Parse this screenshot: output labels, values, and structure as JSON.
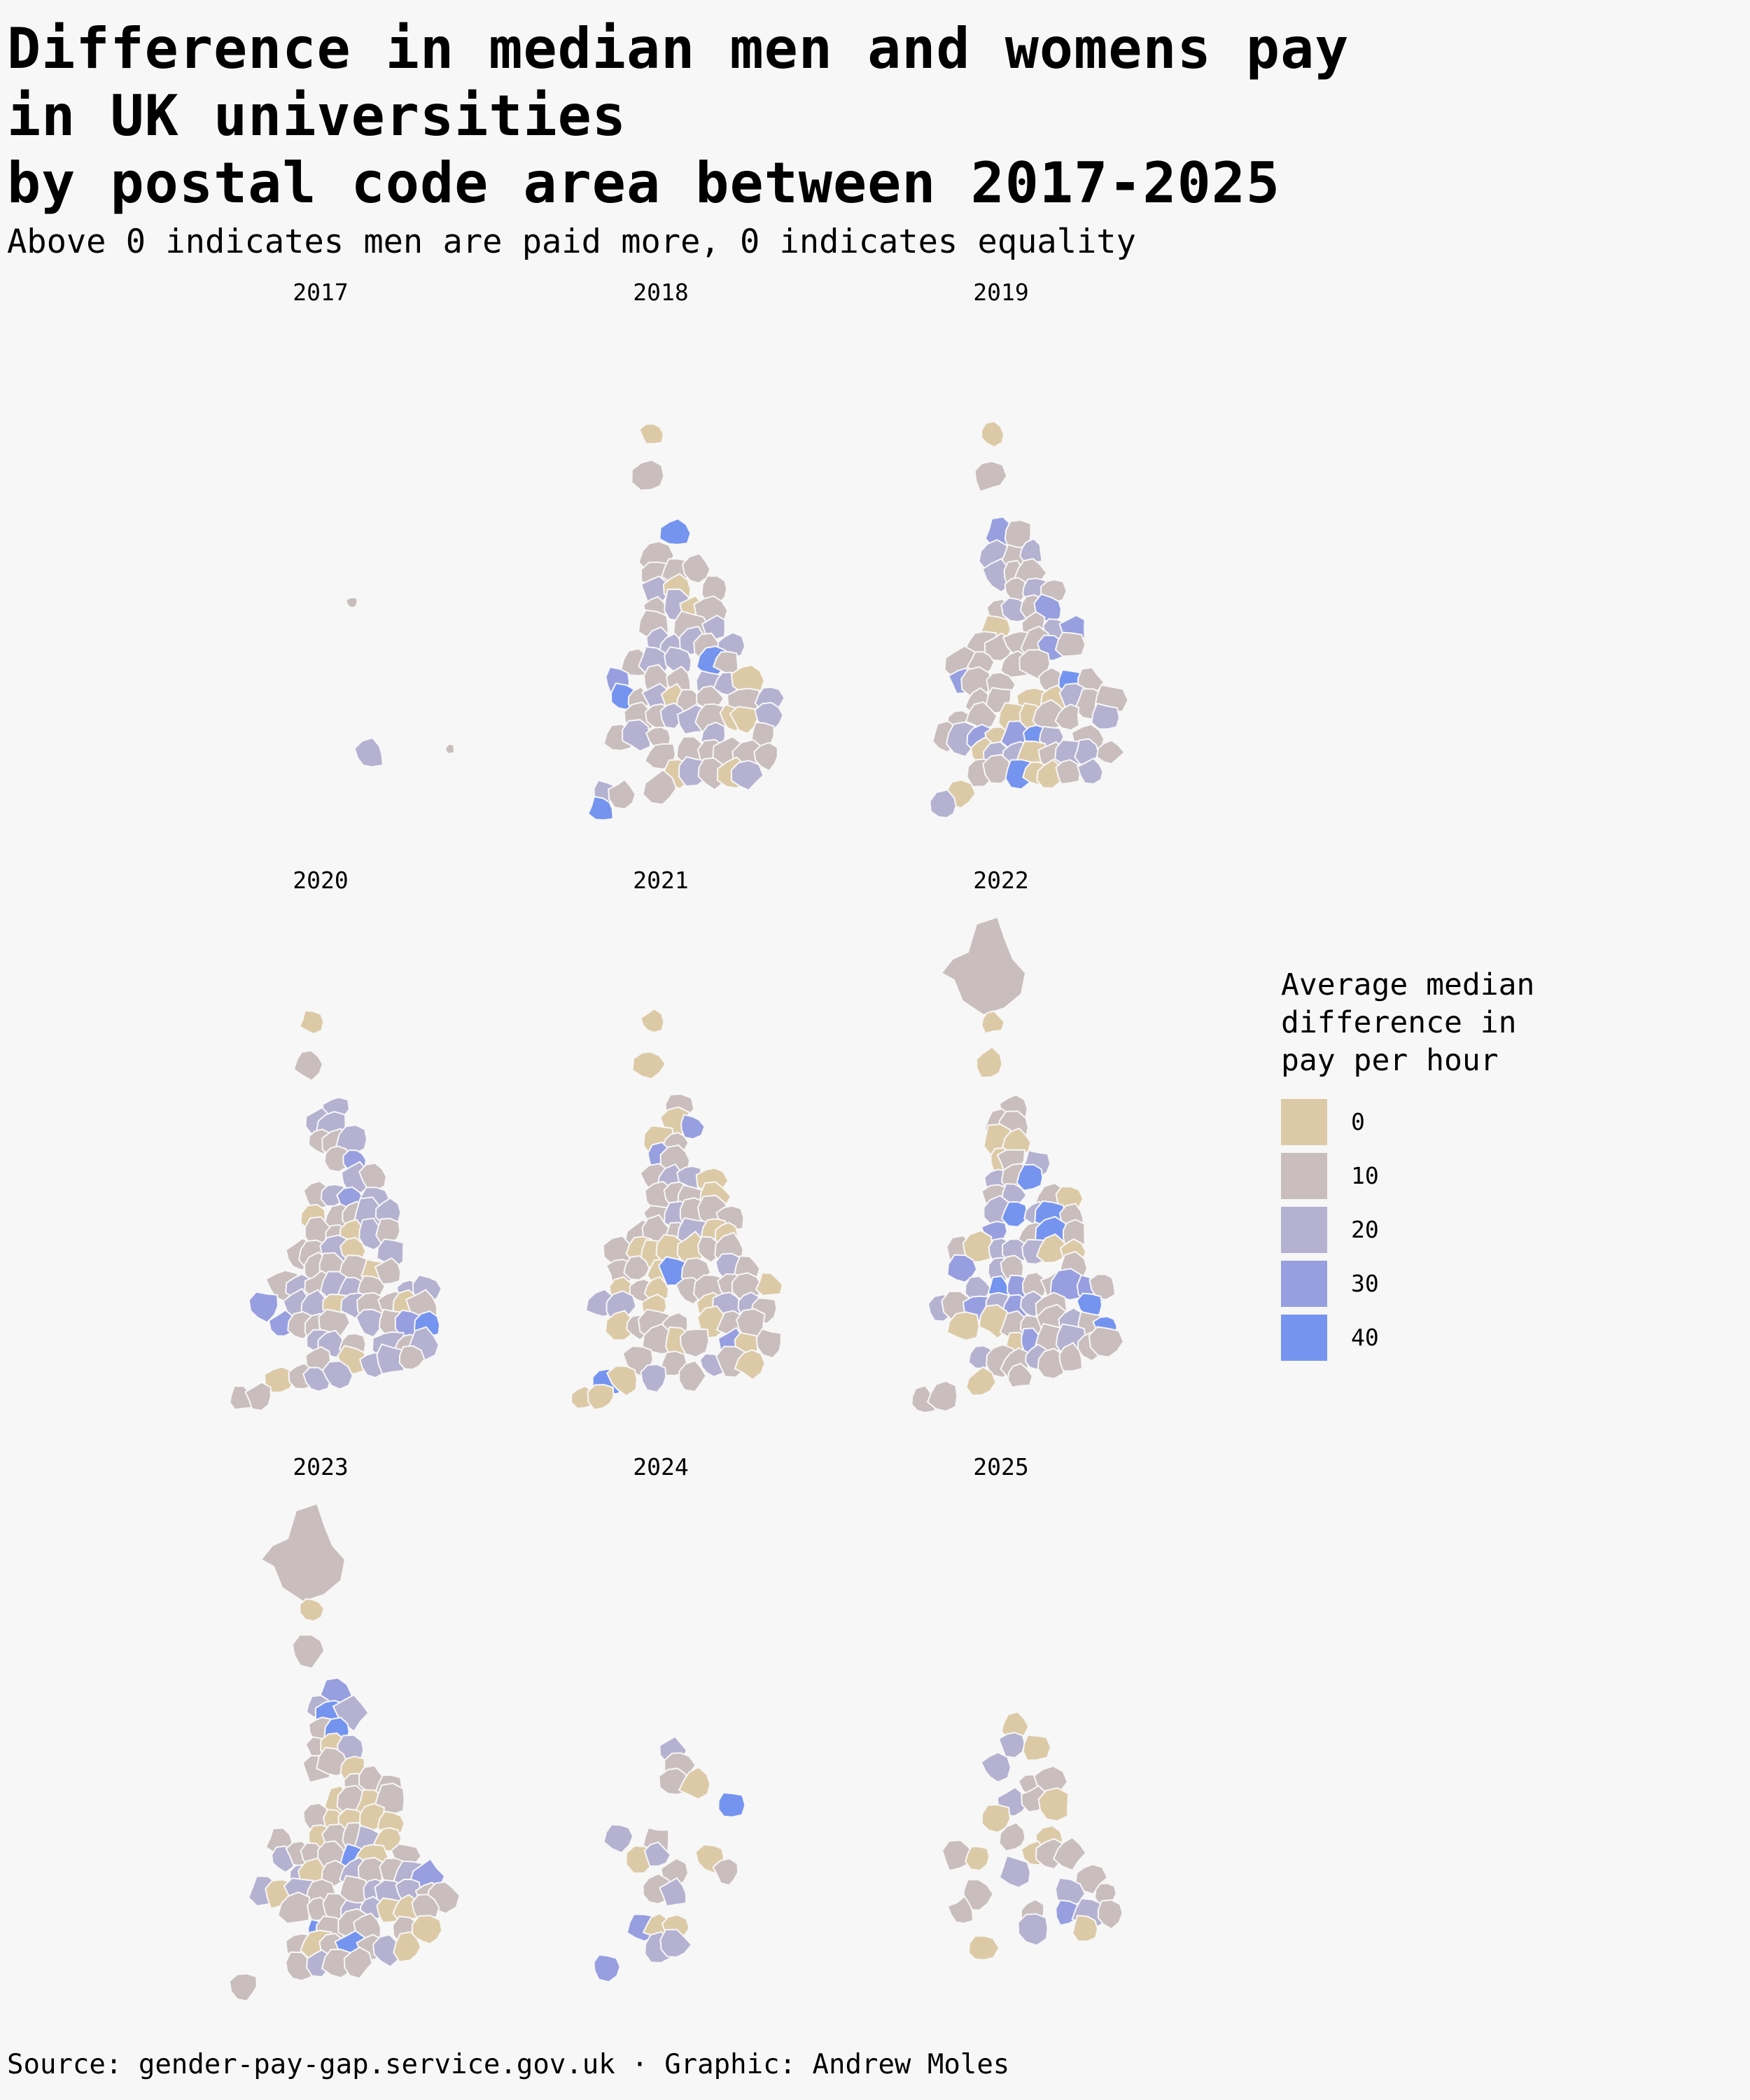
{
  "title": {
    "line1": "Difference in median men and womens pay",
    "line2": "in UK universities",
    "line3": "by postal code area between 2017-2025"
  },
  "subtitle": "Above 0 indicates men are paid more, 0 indicates equality",
  "panels": [
    {
      "year": "2017"
    },
    {
      "year": "2018"
    },
    {
      "year": "2019"
    },
    {
      "year": "2020"
    },
    {
      "year": "2021"
    },
    {
      "year": "2022"
    },
    {
      "year": "2023"
    },
    {
      "year": "2024"
    },
    {
      "year": "2025"
    }
  ],
  "legend": {
    "title_line1": "Average median",
    "title_line2": "difference in",
    "title_line3": "pay per hour",
    "items": [
      {
        "label": "0",
        "color": "#dccaa7"
      },
      {
        "label": "10",
        "color": "#c9bdbd"
      },
      {
        "label": "20",
        "color": "#b4b1d1"
      },
      {
        "label": "30",
        "color": "#979fe0"
      },
      {
        "label": "40",
        "color": "#7594f0"
      }
    ]
  },
  "source": "Source: gender-pay-gap.service.gov.uk · Graphic: Andrew Moles"
}
